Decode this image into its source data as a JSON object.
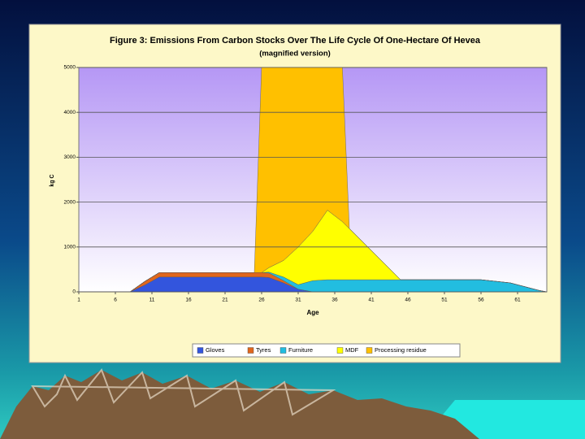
{
  "chart_data": {
    "type": "stacked-area",
    "title": "Figure 3: Emissions From Carbon Stocks Over The Life Cycle Of One-Hectare Of Hevea",
    "subtitle": "(magnified version)",
    "x_label": "Age",
    "y_label": "kg C",
    "x": [
      1,
      8,
      10,
      12,
      25,
      26,
      27,
      29,
      31,
      33,
      35,
      37,
      38,
      45,
      56,
      60,
      64,
      65
    ],
    "series": [
      {
        "name": "Gloves",
        "color": "#3355dd",
        "values": [
          0,
          0,
          150,
          330,
          330,
          330,
          320,
          200,
          60,
          0,
          0,
          0,
          0,
          0,
          0,
          0,
          0,
          0
        ]
      },
      {
        "name": "Tyres",
        "color": "#e0661c",
        "values": [
          0,
          0,
          80,
          100,
          100,
          100,
          100,
          50,
          0,
          0,
          0,
          0,
          0,
          0,
          0,
          0,
          0,
          0
        ]
      },
      {
        "name": "Furniture",
        "color": "#22bde0",
        "values": [
          0,
          0,
          0,
          0,
          0,
          0,
          20,
          80,
          100,
          250,
          270,
          270,
          270,
          270,
          270,
          200,
          30,
          0
        ]
      },
      {
        "name": "MDF",
        "color": "#ffff00",
        "values": [
          0,
          0,
          0,
          0,
          0,
          0,
          100,
          370,
          840,
          1100,
          1550,
          1300,
          1140,
          0,
          0,
          0,
          0,
          0
        ]
      },
      {
        "name": "Processing residue",
        "color": "#ffc000",
        "values": [
          0,
          0,
          0,
          0,
          0,
          4600,
          4500,
          4400,
          4100,
          3800,
          3300,
          3600,
          0,
          0,
          0,
          0,
          0,
          0
        ]
      }
    ],
    "xlim": [
      1,
      65
    ],
    "xticks": [
      1,
      6,
      11,
      16,
      21,
      26,
      31,
      36,
      41,
      46,
      51,
      56,
      61
    ],
    "ylim": [
      0,
      5000
    ],
    "yticks": [
      0,
      1000,
      2000,
      3000,
      4000,
      5000
    ],
    "grid": true,
    "legend": "bottom"
  }
}
